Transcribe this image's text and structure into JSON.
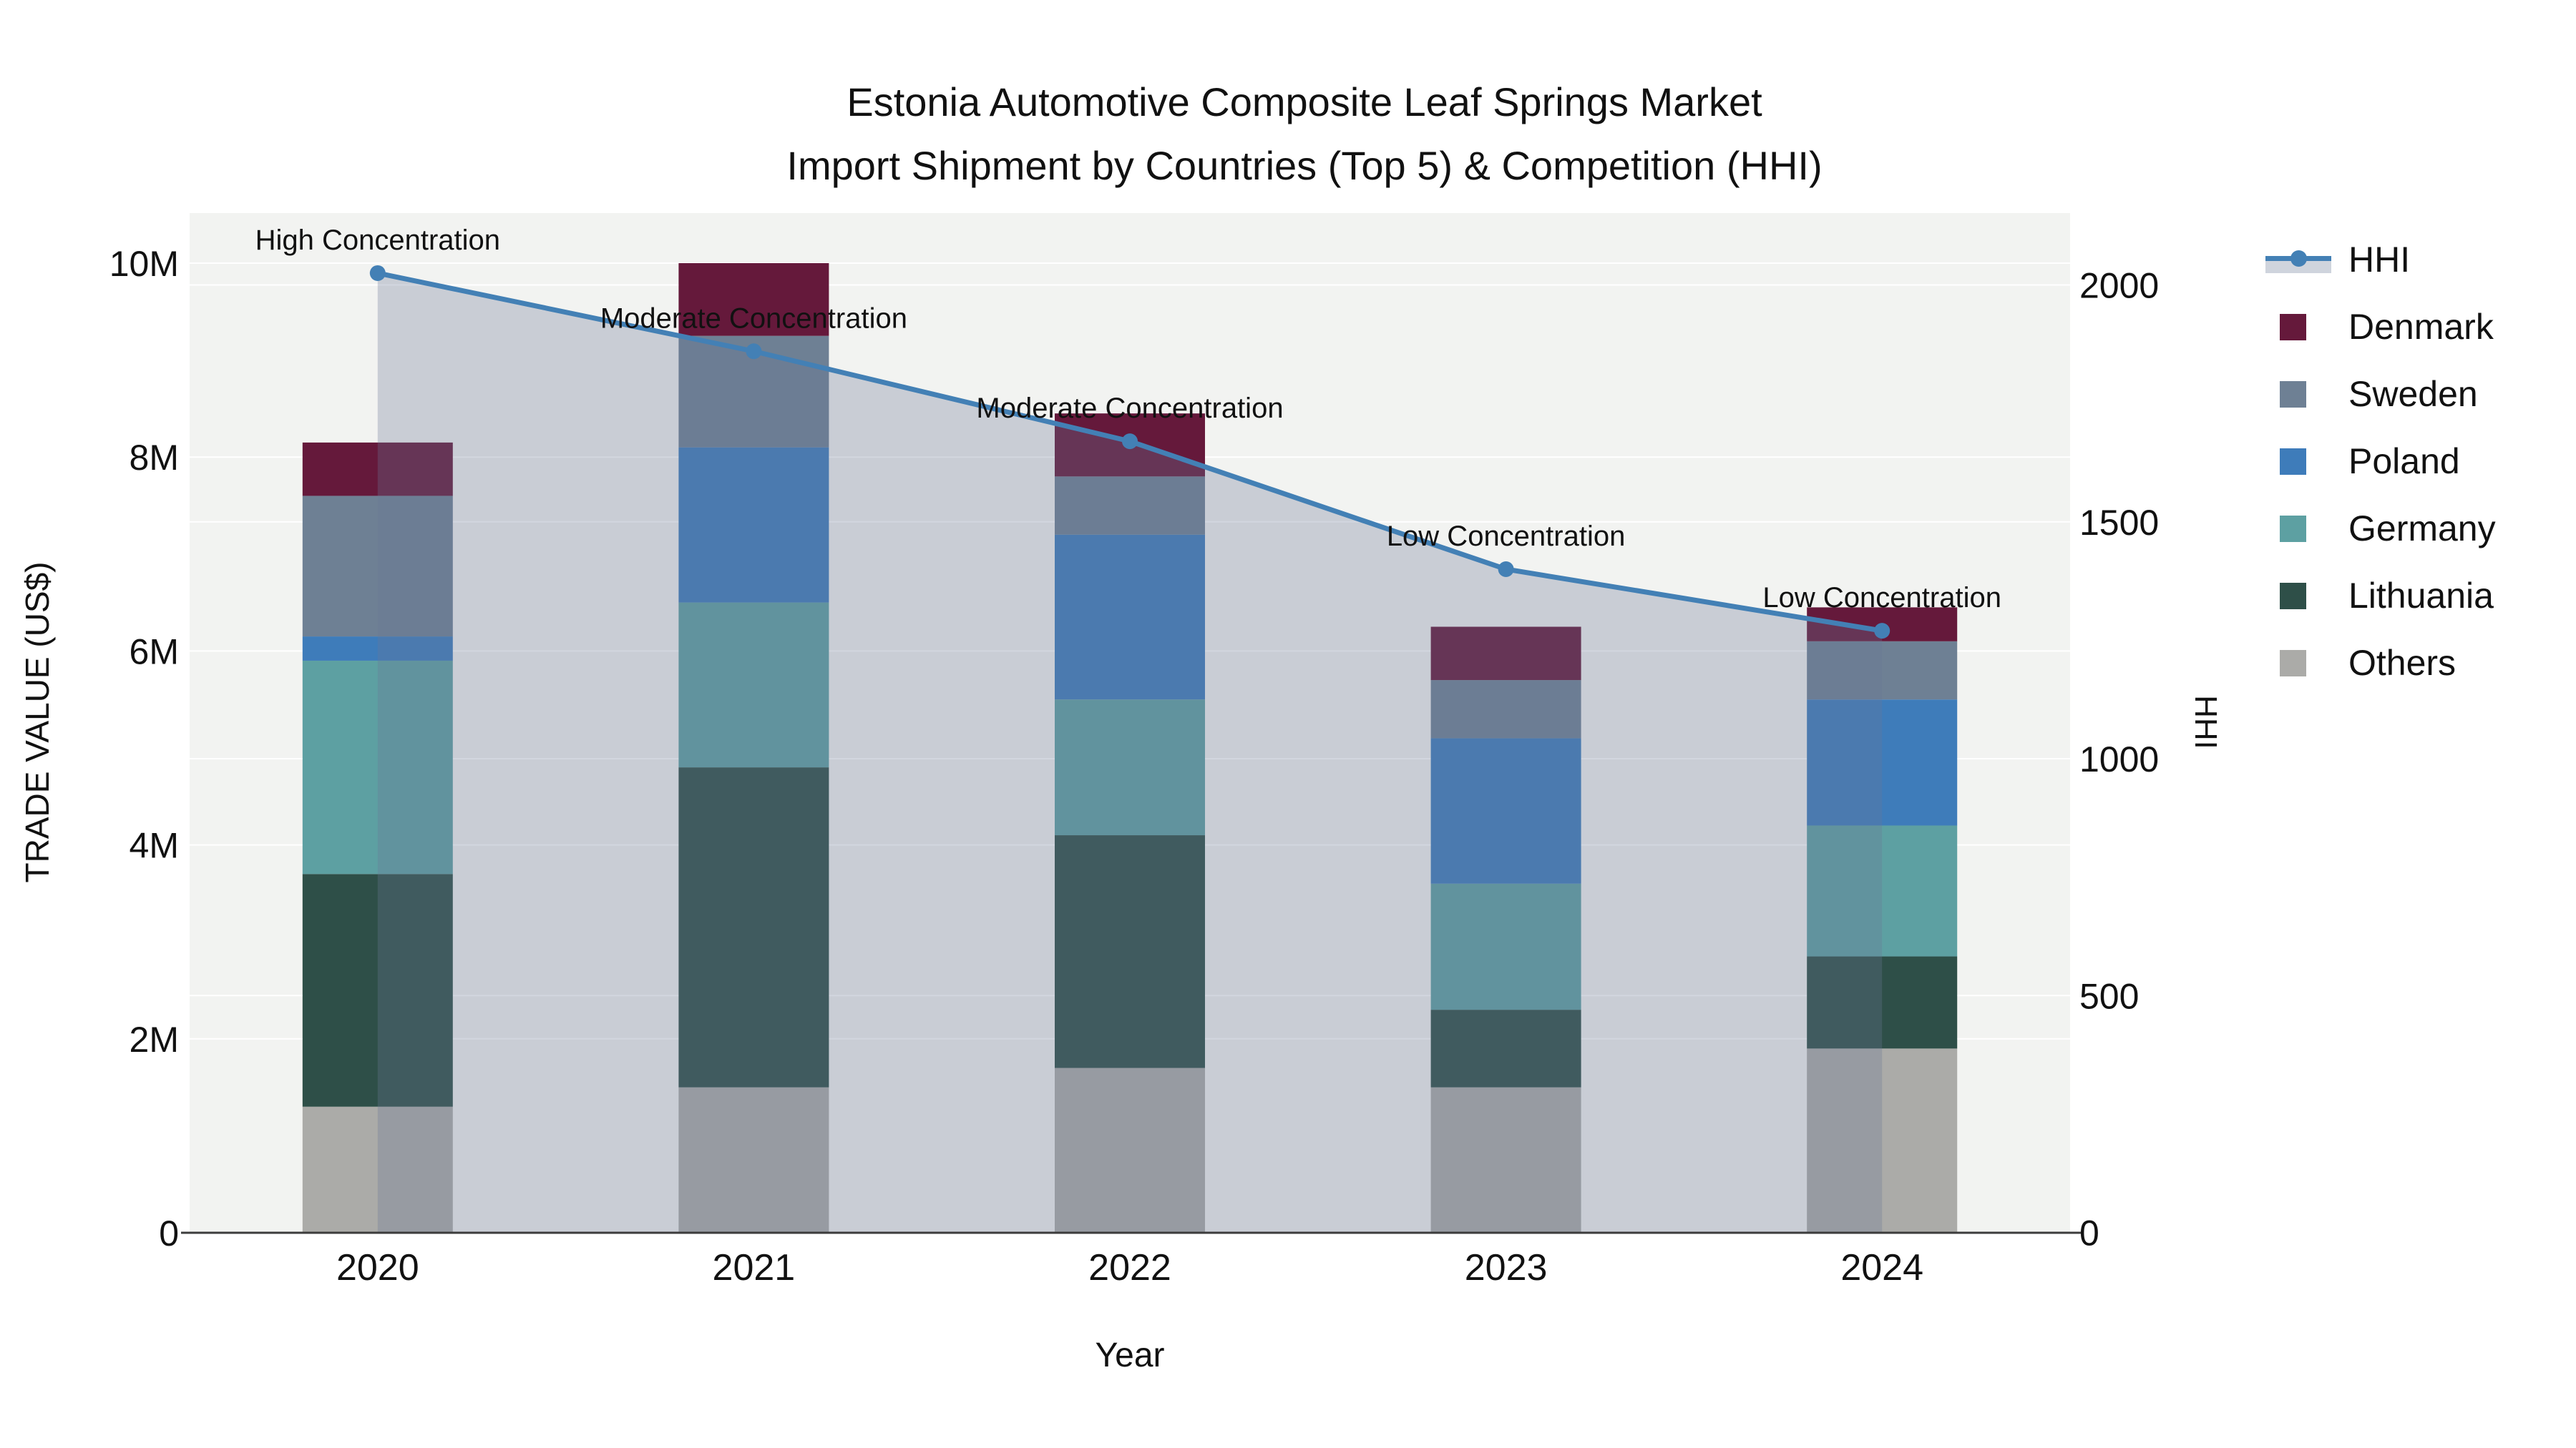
{
  "title": {
    "line1": "Estonia Automotive Composite Leaf Springs Market",
    "line2": "Import Shipment by Countries (Top 5) & Competition (HHI)"
  },
  "axes": {
    "y_left": {
      "title": "TRADE VALUE (US$)",
      "tick_labels": [
        "0",
        "2M",
        "4M",
        "6M",
        "8M",
        "10M"
      ],
      "tick_values_musd": [
        0,
        2,
        4,
        6,
        8,
        10
      ]
    },
    "y_right": {
      "title": "HHI",
      "tick_labels": [
        "0",
        "500",
        "1000",
        "1500",
        "2000"
      ],
      "tick_values": [
        0,
        500,
        1000,
        1500,
        2000
      ]
    },
    "x": {
      "title": "Year",
      "categories": [
        "2020",
        "2021",
        "2022",
        "2023",
        "2024"
      ]
    }
  },
  "legend": {
    "items": [
      {
        "label": "HHI",
        "type": "line",
        "color": "#4380b5"
      },
      {
        "label": "Denmark",
        "type": "square",
        "color": "#65193b"
      },
      {
        "label": "Sweden",
        "type": "square",
        "color": "#6e8094"
      },
      {
        "label": "Poland",
        "type": "square",
        "color": "#3e7cba"
      },
      {
        "label": "Germany",
        "type": "square",
        "color": "#5da0a2"
      },
      {
        "label": "Lithuania",
        "type": "square",
        "color": "#2e4f48"
      },
      {
        "label": "Others",
        "type": "square",
        "color": "#ababa8"
      }
    ]
  },
  "chart_data": {
    "type": "bar",
    "subtype": "stacked bars with secondary-axis line (combo)",
    "categories": [
      "2020",
      "2021",
      "2022",
      "2023",
      "2024"
    ],
    "unit": "US$ millions (left axis), HHI index (right axis)",
    "series": [
      {
        "name": "Others",
        "color": "#ababa8",
        "values_musd": [
          1.3,
          1.5,
          1.7,
          1.5,
          1.9
        ]
      },
      {
        "name": "Lithuania",
        "color": "#2e4f48",
        "values_musd": [
          2.4,
          3.3,
          2.4,
          0.8,
          0.95
        ]
      },
      {
        "name": "Germany",
        "color": "#5da0a2",
        "values_musd": [
          2.2,
          1.7,
          1.4,
          1.3,
          1.35
        ]
      },
      {
        "name": "Poland",
        "color": "#3e7cba",
        "values_musd": [
          0.25,
          1.6,
          1.7,
          1.5,
          1.3
        ]
      },
      {
        "name": "Sweden",
        "color": "#6e8094",
        "values_musd": [
          1.45,
          1.15,
          0.6,
          0.6,
          0.6
        ]
      },
      {
        "name": "Denmark",
        "color": "#65193b",
        "values_musd": [
          0.55,
          0.75,
          0.65,
          0.55,
          0.35
        ]
      }
    ],
    "bar_totals_musd": [
      8.15,
      10.0,
      8.45,
      6.25,
      6.45
    ],
    "line_series": {
      "name": "HHI",
      "axis": "right",
      "color": "#4380b5",
      "fill_color": "rgba(105,119,149,0.30)",
      "values": [
        2025,
        1860,
        1670,
        1400,
        1270
      ]
    },
    "annotations": [
      {
        "category": "2020",
        "text": "High Concentration"
      },
      {
        "category": "2021",
        "text": "Moderate Concentration"
      },
      {
        "category": "2022",
        "text": "Moderate Concentration"
      },
      {
        "category": "2023",
        "text": "Low Concentration"
      },
      {
        "category": "2024",
        "text": "Low Concentration"
      }
    ],
    "xlabel": "Year",
    "ylabel_left": "TRADE VALUE (US$)",
    "ylabel_right": "HHI",
    "ylim_left_musd": [
      0,
      10.52
    ],
    "ylim_right": [
      0,
      2152
    ],
    "grid": true,
    "legend_position": "right"
  },
  "colors": {
    "plot_background": "#f2f3f1",
    "grid_line": "#ffffff",
    "axis_line": "#3c3c3c",
    "text": "#111111",
    "hhi_area_fill": "rgba(105,119,149,0.30)"
  }
}
